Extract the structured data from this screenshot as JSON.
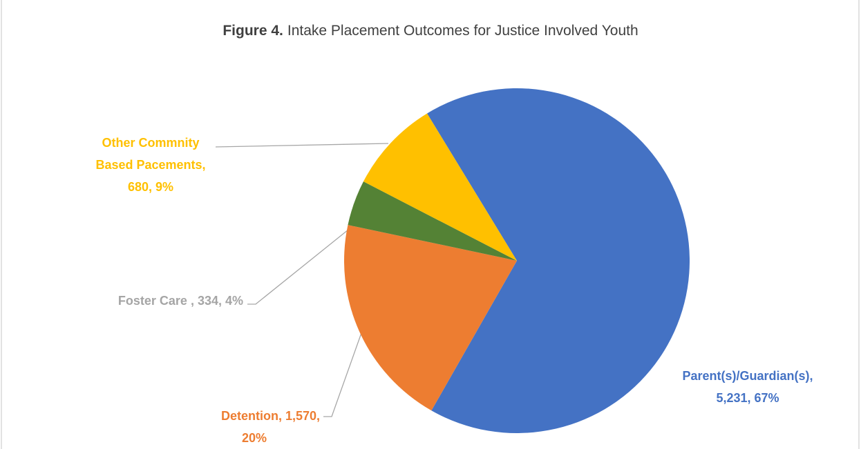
{
  "chart_data": {
    "type": "pie",
    "title": {
      "bold": "Figure 4.",
      "text": "Intake Placement Outcomes for Justice Involved Youth"
    },
    "values": [
      5231,
      1570,
      334,
      680
    ],
    "colors": [
      "#4472c4",
      "#ed7d31",
      "#548235",
      "#ffc000"
    ],
    "label_colors": [
      "#4472c4",
      "#ed7d31",
      "#a5a5a5",
      "#ffc000"
    ],
    "value_labels": [
      [
        "Parent(s)/Guardian(s),",
        "5,231, 67%"
      ],
      [
        "Detention, 1,570,",
        "20%"
      ],
      [
        "Foster Care , 334, 4%"
      ],
      [
        "Other Commnity",
        "Based Pacements,",
        "680, 9%"
      ]
    ]
  }
}
